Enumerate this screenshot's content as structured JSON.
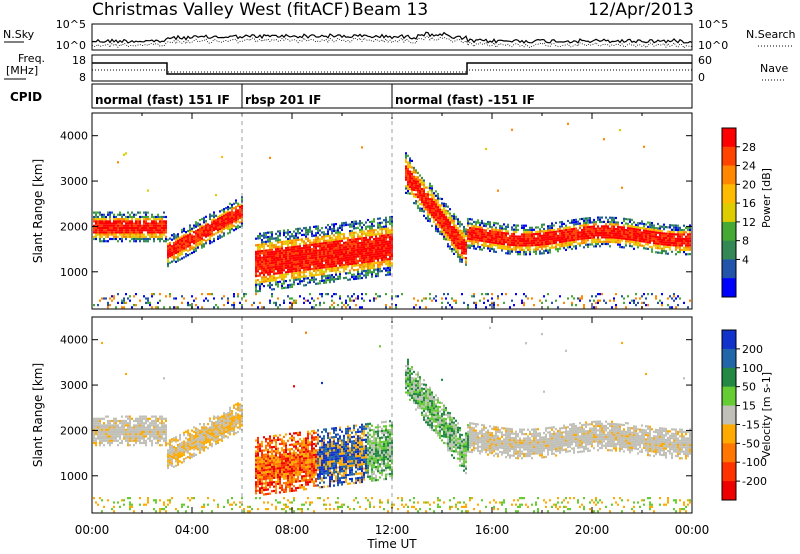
{
  "header": {
    "station": "Christmas Valley West (fitACF)",
    "beam": "Beam 13",
    "date": "12/Apr/2013"
  },
  "noise_panel": {
    "left_label": "N.Sky",
    "right_label": "N.Search",
    "left_ticks": [
      "10^5",
      "10^0"
    ],
    "right_ticks": [
      "10^5",
      "10^0"
    ]
  },
  "freq_panel": {
    "left_label_1": "Freq.",
    "left_label_2": "[MHz]",
    "right_label": "Nave",
    "left_ticks": [
      "18",
      "8"
    ],
    "right_ticks": [
      "60",
      "0"
    ]
  },
  "cpid_panel": {
    "label": "CPID",
    "segments": [
      {
        "name": "normal (fast) 151 IF",
        "start_hour": 0,
        "end_hour": 6
      },
      {
        "name": "rbsp 201 IF",
        "start_hour": 6,
        "end_hour": 12
      },
      {
        "name": "normal (fast) -151 IF",
        "start_hour": 12,
        "end_hour": 24
      }
    ]
  },
  "chart_data": [
    {
      "type": "heatmap",
      "panel": "power",
      "ylabel": "Slant Range [km]",
      "y_ticks": [
        "1000",
        "2000",
        "3000",
        "4000"
      ],
      "ylim": [
        180,
        4500
      ],
      "colorbar_label": "Power [dB]",
      "colorbar_ticks": [
        "28",
        "24",
        "20",
        "16",
        "12",
        "8",
        "4"
      ],
      "colorbar_colors": [
        "#ff0000",
        "#ff4400",
        "#ff8800",
        "#ffbb00",
        "#ddcc00",
        "#44aa33",
        "#338855",
        "#2255aa",
        "#0000ff"
      ],
      "features": [
        {
          "start_hour": 0,
          "end_hour": 3,
          "range_km": 2000
        },
        {
          "start_hour": 3,
          "end_hour": 6,
          "range_km": 1500
        },
        {
          "start_hour": 6.5,
          "end_hour": 12,
          "range_km": 1400
        },
        {
          "start_hour": 12.5,
          "end_hour": 15,
          "range_km": 1500
        },
        {
          "start_hour": 15,
          "end_hour": 24,
          "range_km": 1800
        }
      ]
    },
    {
      "type": "heatmap",
      "panel": "velocity",
      "ylabel": "Slant Range [km]",
      "y_ticks": [
        "1000",
        "2000",
        "3000",
        "4000"
      ],
      "ylim": [
        180,
        4500
      ],
      "colorbar_label": "Velocity [m s-1]",
      "colorbar_ticks": [
        "200",
        "100",
        "50",
        "15",
        "-15",
        "-50",
        "-100",
        "-200"
      ],
      "colorbar_colors": [
        "#1133cc",
        "#2266aa",
        "#228844",
        "#66cc33",
        "#c0c0b8",
        "#ffaa00",
        "#ff7700",
        "#ff3300",
        "#ee0000"
      ],
      "x_ticks": [
        "00:00",
        "04:00",
        "08:00",
        "12:00",
        "16:00",
        "20:00",
        "00:00"
      ],
      "xlabel": "Time UT",
      "xlim": [
        0,
        24
      ]
    }
  ]
}
